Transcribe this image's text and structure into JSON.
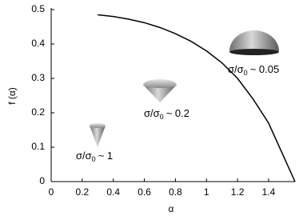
{
  "chart_data": {
    "type": "line",
    "x_label": "α",
    "y_label": "f (α)",
    "x": [
      0.3,
      0.4,
      0.5,
      0.6,
      0.7,
      0.8,
      0.9,
      1.0,
      1.1,
      1.2,
      1.3,
      1.4,
      1.5,
      1.57
    ],
    "series": [
      {
        "color": "#000000",
        "values": [
          0.485,
          0.48,
          0.472,
          0.462,
          0.448,
          0.43,
          0.408,
          0.38,
          0.345,
          0.3,
          0.24,
          0.17,
          0.07,
          0
        ]
      }
    ],
    "xlim": [
      0,
      1.57
    ],
    "ylim": [
      0,
      0.5
    ],
    "xticks": [
      0,
      0.2,
      0.4,
      0.6,
      0.8,
      1,
      1.2,
      1.4
    ],
    "yticks": [
      0,
      0.1,
      0.2,
      0.3,
      0.4,
      0.5
    ],
    "grid": false,
    "annotations": [
      {
        "text": "σ/σ",
        "sub": "0",
        "rest": "~ 0.05"
      },
      {
        "text": "σ/σ",
        "sub": "0",
        "rest": "~ 0.2"
      },
      {
        "text": "σ/σ",
        "sub": "0",
        "rest": "~ 1"
      }
    ]
  }
}
